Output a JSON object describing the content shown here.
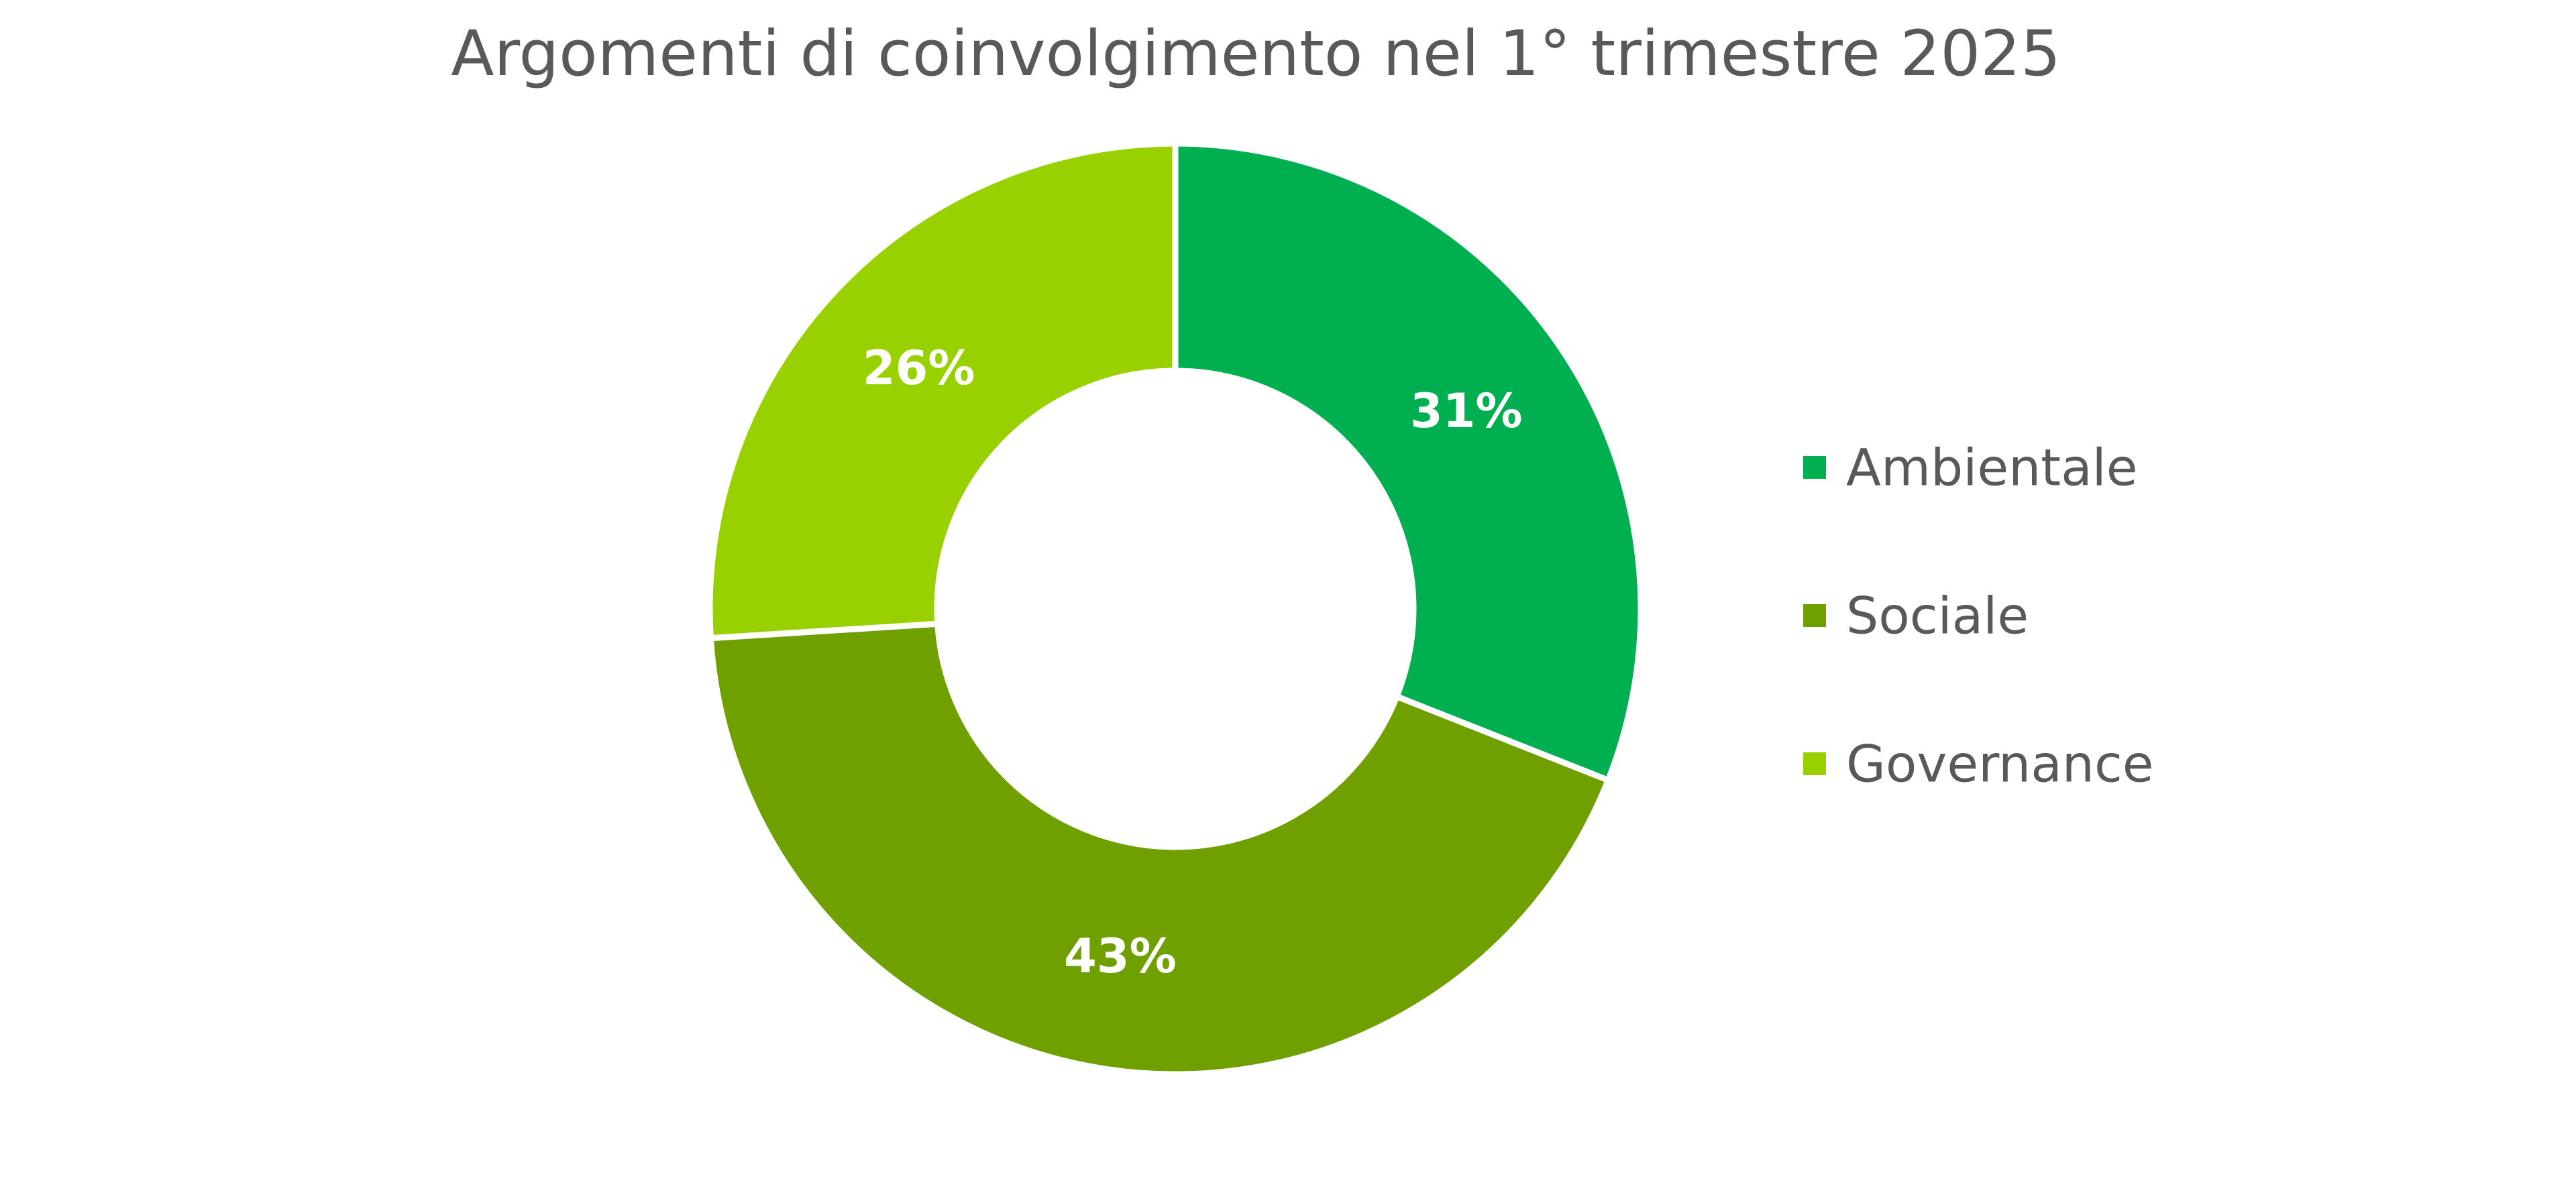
{
  "chart_data": {
    "type": "pie",
    "variant": "donut",
    "title": "Argomenti di coinvolgimento nel 1° trimestre 2025",
    "categories": [
      "Ambientale",
      "Sociale",
      "Governance"
    ],
    "values": [
      31,
      43,
      26
    ],
    "labels": [
      "31%",
      "43%",
      "26%"
    ],
    "colors": [
      "#00B050",
      "#70A000",
      "#99D100"
    ],
    "legend_position": "right",
    "start_angle": "12 o'clock",
    "direction": "clockwise"
  }
}
